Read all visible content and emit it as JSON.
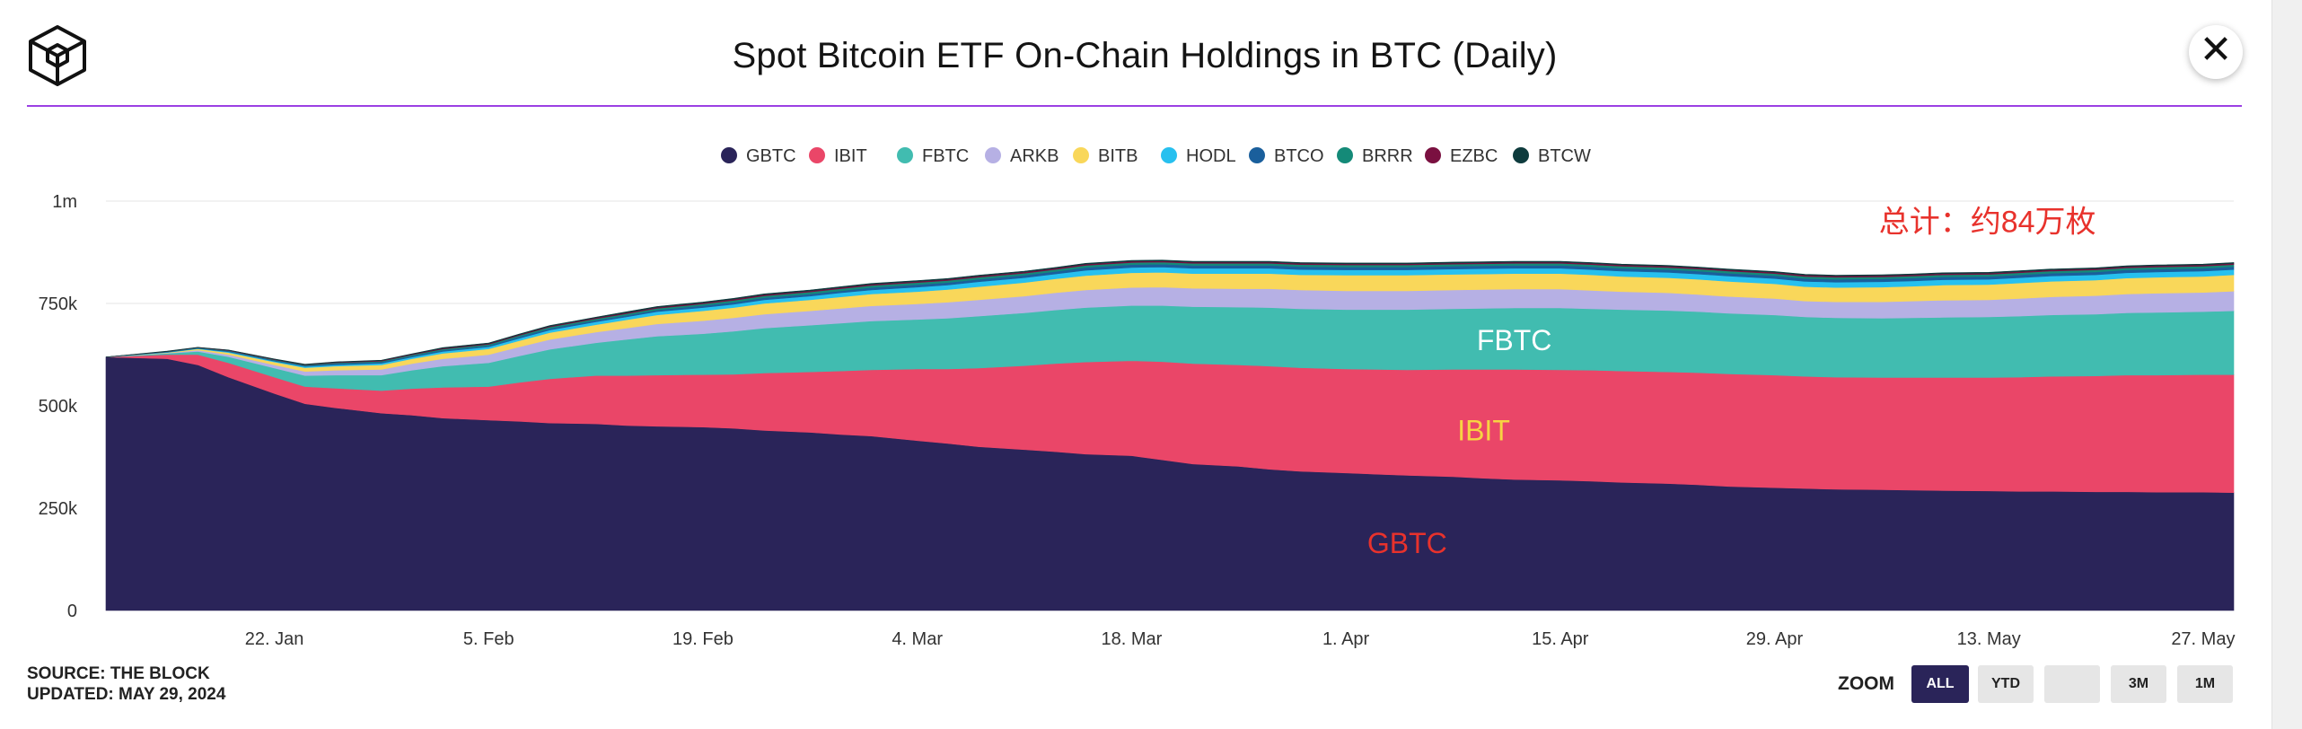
{
  "header": {
    "title": "Spot Bitcoin ETF On-Chain Holdings in BTC (Daily)",
    "close_label": "✕"
  },
  "footer": {
    "source": "SOURCE: THE BLOCK",
    "updated": "UPDATED: MAY 29, 2024"
  },
  "zoom": {
    "label": "ZOOM",
    "buttons": [
      "ALL",
      "YTD",
      "",
      "3M",
      "1M"
    ],
    "active": "ALL"
  },
  "chart_data": {
    "type": "area",
    "stacked": true,
    "title": "Spot Bitcoin ETF On-Chain Holdings in BTC (Daily)",
    "xlabel": "",
    "ylabel": "",
    "ylim": [
      0,
      1000000
    ],
    "y_ticks": [
      {
        "value": 0,
        "label": "0"
      },
      {
        "value": 250000,
        "label": "250k"
      },
      {
        "value": 500000,
        "label": "500k"
      },
      {
        "value": 750000,
        "label": "750k"
      },
      {
        "value": 1000000,
        "label": "1m"
      }
    ],
    "x_ticks": [
      "22. Jan",
      "5. Feb",
      "19. Feb",
      "4. Mar",
      "18. Mar",
      "1. Apr",
      "15. Apr",
      "29. Apr",
      "13. May",
      "27. May"
    ],
    "x_tick_dates": [
      "2024-01-22",
      "2024-02-05",
      "2024-02-19",
      "2024-03-04",
      "2024-03-18",
      "2024-04-01",
      "2024-04-15",
      "2024-04-29",
      "2024-05-13",
      "2024-05-27"
    ],
    "grid": true,
    "legend_position": "top-center",
    "dates": [
      "2024-01-11",
      "2024-01-15",
      "2024-01-17",
      "2024-01-19",
      "2024-01-22",
      "2024-01-24",
      "2024-01-26",
      "2024-01-29",
      "2024-01-31",
      "2024-02-02",
      "2024-02-05",
      "2024-02-07",
      "2024-02-09",
      "2024-02-12",
      "2024-02-14",
      "2024-02-16",
      "2024-02-19",
      "2024-02-21",
      "2024-02-23",
      "2024-02-26",
      "2024-02-28",
      "2024-03-01",
      "2024-03-04",
      "2024-03-06",
      "2024-03-08",
      "2024-03-11",
      "2024-03-13",
      "2024-03-15",
      "2024-03-18",
      "2024-03-20",
      "2024-03-22",
      "2024-03-25",
      "2024-03-27",
      "2024-03-29",
      "2024-04-01",
      "2024-04-03",
      "2024-04-05",
      "2024-04-08",
      "2024-04-10",
      "2024-04-12",
      "2024-04-15",
      "2024-04-17",
      "2024-04-19",
      "2024-04-22",
      "2024-04-24",
      "2024-04-26",
      "2024-04-29",
      "2024-05-01",
      "2024-05-03",
      "2024-05-06",
      "2024-05-08",
      "2024-05-10",
      "2024-05-13",
      "2024-05-15",
      "2024-05-17",
      "2024-05-20",
      "2024-05-22",
      "2024-05-24",
      "2024-05-27",
      "2024-05-29"
    ],
    "series": [
      {
        "name": "GBTC",
        "color": "#2a2459",
        "values": [
          619000,
          615000,
          600000,
          570000,
          530000,
          505000,
          495000,
          482000,
          477000,
          470000,
          465000,
          462000,
          458000,
          456000,
          452000,
          450000,
          448000,
          445000,
          440000,
          435000,
          430000,
          426000,
          415000,
          408000,
          400000,
          393000,
          388000,
          382000,
          378000,
          368000,
          358000,
          352000,
          345000,
          340000,
          336000,
          333000,
          330000,
          327000,
          323000,
          320000,
          318000,
          316000,
          313000,
          310000,
          307000,
          303000,
          300000,
          298000,
          296000,
          295000,
          294000,
          293000,
          292000,
          291000,
          291000,
          290000,
          290000,
          289000,
          289000,
          288000
        ]
      },
      {
        "name": "IBIT",
        "color": "#ea4668",
        "values": [
          0,
          10000,
          25000,
          35000,
          40000,
          42000,
          48000,
          55000,
          65000,
          75000,
          82000,
          95000,
          108000,
          118000,
          122000,
          125000,
          128000,
          132000,
          140000,
          148000,
          155000,
          162000,
          175000,
          182000,
          192000,
          205000,
          215000,
          225000,
          232000,
          240000,
          245000,
          248000,
          252000,
          253000,
          254000,
          256000,
          258000,
          262000,
          266000,
          269000,
          270000,
          271000,
          272000,
          273000,
          274000,
          275000,
          275000,
          274000,
          274000,
          274000,
          275000,
          276000,
          277000,
          279000,
          281000,
          283000,
          285000,
          286000,
          287000,
          288000
        ]
      },
      {
        "name": "FBTC",
        "color": "#41bcb0",
        "values": [
          0,
          3000,
          8000,
          15000,
          22000,
          27000,
          32000,
          38000,
          45000,
          52000,
          58000,
          65000,
          72000,
          80000,
          88000,
          95000,
          100000,
          105000,
          110000,
          114000,
          117000,
          119000,
          121000,
          124000,
          127000,
          129000,
          131000,
          133000,
          135000,
          137000,
          139000,
          141000,
          143000,
          144000,
          145000,
          146000,
          147000,
          148000,
          149000,
          150000,
          151000,
          150000,
          150000,
          150000,
          149000,
          148000,
          147000,
          145000,
          145000,
          145000,
          146000,
          147000,
          148000,
          149000,
          150000,
          151000,
          152000,
          153000,
          154000,
          156000
        ]
      },
      {
        "name": "ARKB",
        "color": "#b6b0e4",
        "values": [
          0,
          1000,
          3000,
          5000,
          8000,
          10000,
          12000,
          14000,
          16000,
          18000,
          20000,
          22000,
          24000,
          26000,
          28000,
          30000,
          32000,
          33000,
          34000,
          35000,
          36000,
          37000,
          38000,
          39000,
          40000,
          41000,
          42000,
          43000,
          44000,
          45000,
          45000,
          45000,
          46000,
          46000,
          46000,
          46000,
          46000,
          46000,
          46000,
          46000,
          46000,
          45000,
          44000,
          43000,
          42000,
          41000,
          40000,
          39000,
          39000,
          40000,
          41000,
          42000,
          42000,
          43000,
          44000,
          45000,
          46000,
          47000,
          47000,
          48000
        ]
      },
      {
        "name": "BITB",
        "color": "#f9d75a",
        "values": [
          0,
          1000,
          3000,
          5000,
          7000,
          9000,
          10000,
          11000,
          12000,
          13000,
          14000,
          15000,
          17000,
          18000,
          20000,
          22000,
          24000,
          25000,
          26000,
          27000,
          28000,
          29000,
          30000,
          31000,
          32000,
          33000,
          34000,
          35000,
          36000,
          36000,
          36000,
          37000,
          37000,
          37000,
          38000,
          38000,
          38000,
          38000,
          38000,
          38000,
          38000,
          38000,
          37000,
          37000,
          37000,
          37000,
          36000,
          35000,
          35000,
          36000,
          36000,
          37000,
          37000,
          38000,
          38000,
          38000,
          39000,
          39000,
          39000,
          40000
        ]
      },
      {
        "name": "HODL",
        "color": "#27c0ef",
        "values": [
          0,
          1000,
          1000,
          2000,
          2000,
          3000,
          3000,
          4000,
          4000,
          5000,
          5000,
          6000,
          6000,
          7000,
          7000,
          8000,
          8000,
          8000,
          9000,
          9000,
          10000,
          10000,
          11000,
          11000,
          12000,
          12000,
          12000,
          13000,
          13000,
          13000,
          13000,
          13000,
          13000,
          13000,
          13000,
          13000,
          13000,
          13000,
          13000,
          13000,
          13000,
          13000,
          13000,
          13000,
          13000,
          13000,
          13000,
          13000,
          13000,
          13000,
          13000,
          13000,
          13000,
          13000,
          13000,
          13000,
          13000,
          13000,
          13000,
          13000
        ]
      },
      {
        "name": "BTCO",
        "color": "#1a5f9c",
        "values": [
          0,
          1000,
          1000,
          2000,
          2000,
          2000,
          3000,
          3000,
          3000,
          3000,
          3000,
          4000,
          4000,
          4000,
          4000,
          4000,
          5000,
          5000,
          5000,
          5000,
          5000,
          6000,
          6000,
          6000,
          6000,
          6000,
          6000,
          7000,
          7000,
          7000,
          7000,
          7000,
          7000,
          7000,
          7000,
          7000,
          7000,
          7000,
          7000,
          7000,
          7000,
          7000,
          7000,
          7000,
          7000,
          7000,
          7000,
          7000,
          7000,
          7000,
          7000,
          7000,
          7000,
          7000,
          7000,
          7000,
          7000,
          7000,
          7000,
          7000
        ]
      },
      {
        "name": "BRRR",
        "color": "#148a78",
        "values": [
          0,
          500,
          1000,
          1000,
          1500,
          1500,
          2000,
          2000,
          2500,
          2500,
          3000,
          3000,
          3500,
          3500,
          4000,
          4000,
          4000,
          4500,
          4500,
          5000,
          5000,
          5000,
          5000,
          5000,
          5000,
          5000,
          5000,
          5000,
          5000,
          5000,
          5000,
          5000,
          5000,
          5000,
          5000,
          5000,
          5000,
          5000,
          5000,
          5000,
          5000,
          5000,
          5000,
          5000,
          5000,
          5000,
          5000,
          5000,
          5000,
          5000,
          5000,
          5000,
          5000,
          5000,
          5000,
          5000,
          5000,
          5000,
          5000,
          5000
        ]
      },
      {
        "name": "EZBC",
        "color": "#7a1040",
        "values": [
          0,
          500,
          500,
          1000,
          1000,
          1000,
          1500,
          1500,
          1500,
          2000,
          2000,
          2000,
          2000,
          2500,
          2500,
          2500,
          2500,
          3000,
          3000,
          3000,
          3000,
          3000,
          3000,
          3000,
          3000,
          3000,
          3000,
          3000,
          3000,
          3000,
          3000,
          3000,
          3000,
          3000,
          3000,
          3000,
          3000,
          3000,
          3000,
          3000,
          3000,
          3000,
          3000,
          3000,
          3000,
          3000,
          3000,
          3000,
          3000,
          3000,
          3000,
          3000,
          3000,
          3000,
          3000,
          3000,
          3000,
          3000,
          3000,
          3000
        ]
      },
      {
        "name": "BTCW",
        "color": "#0e3b3d",
        "values": [
          0,
          500,
          500,
          500,
          1000,
          1000,
          1000,
          1000,
          1000,
          1500,
          1500,
          1500,
          1500,
          1500,
          2000,
          2000,
          2000,
          2000,
          2000,
          2000,
          2000,
          2000,
          2000,
          2000,
          2000,
          2000,
          2000,
          2000,
          2000,
          2000,
          2000,
          2000,
          2000,
          2000,
          2000,
          2000,
          2000,
          2000,
          2000,
          2000,
          2000,
          2000,
          2000,
          2000,
          2000,
          2000,
          2000,
          2000,
          2000,
          2000,
          2000,
          2000,
          2000,
          2000,
          2000,
          2000,
          2000,
          2000,
          2000,
          2000
        ]
      }
    ],
    "annotations": [
      {
        "text": "总计：约84万枚",
        "date": "2024-05-20",
        "value": 950000,
        "color": "#e8322c",
        "anchor": "end",
        "size": 34
      },
      {
        "text": "FBTC",
        "date": "2024-04-12",
        "value": 660000,
        "color": "#ffffff",
        "anchor": "middle",
        "size": 32
      },
      {
        "text": "IBIT",
        "date": "2024-04-10",
        "value": 440000,
        "color": "#f7d442",
        "anchor": "middle",
        "size": 32
      },
      {
        "text": "GBTC",
        "date": "2024-04-05",
        "value": 165000,
        "color": "#e8322c",
        "anchor": "middle",
        "size": 32
      }
    ]
  }
}
